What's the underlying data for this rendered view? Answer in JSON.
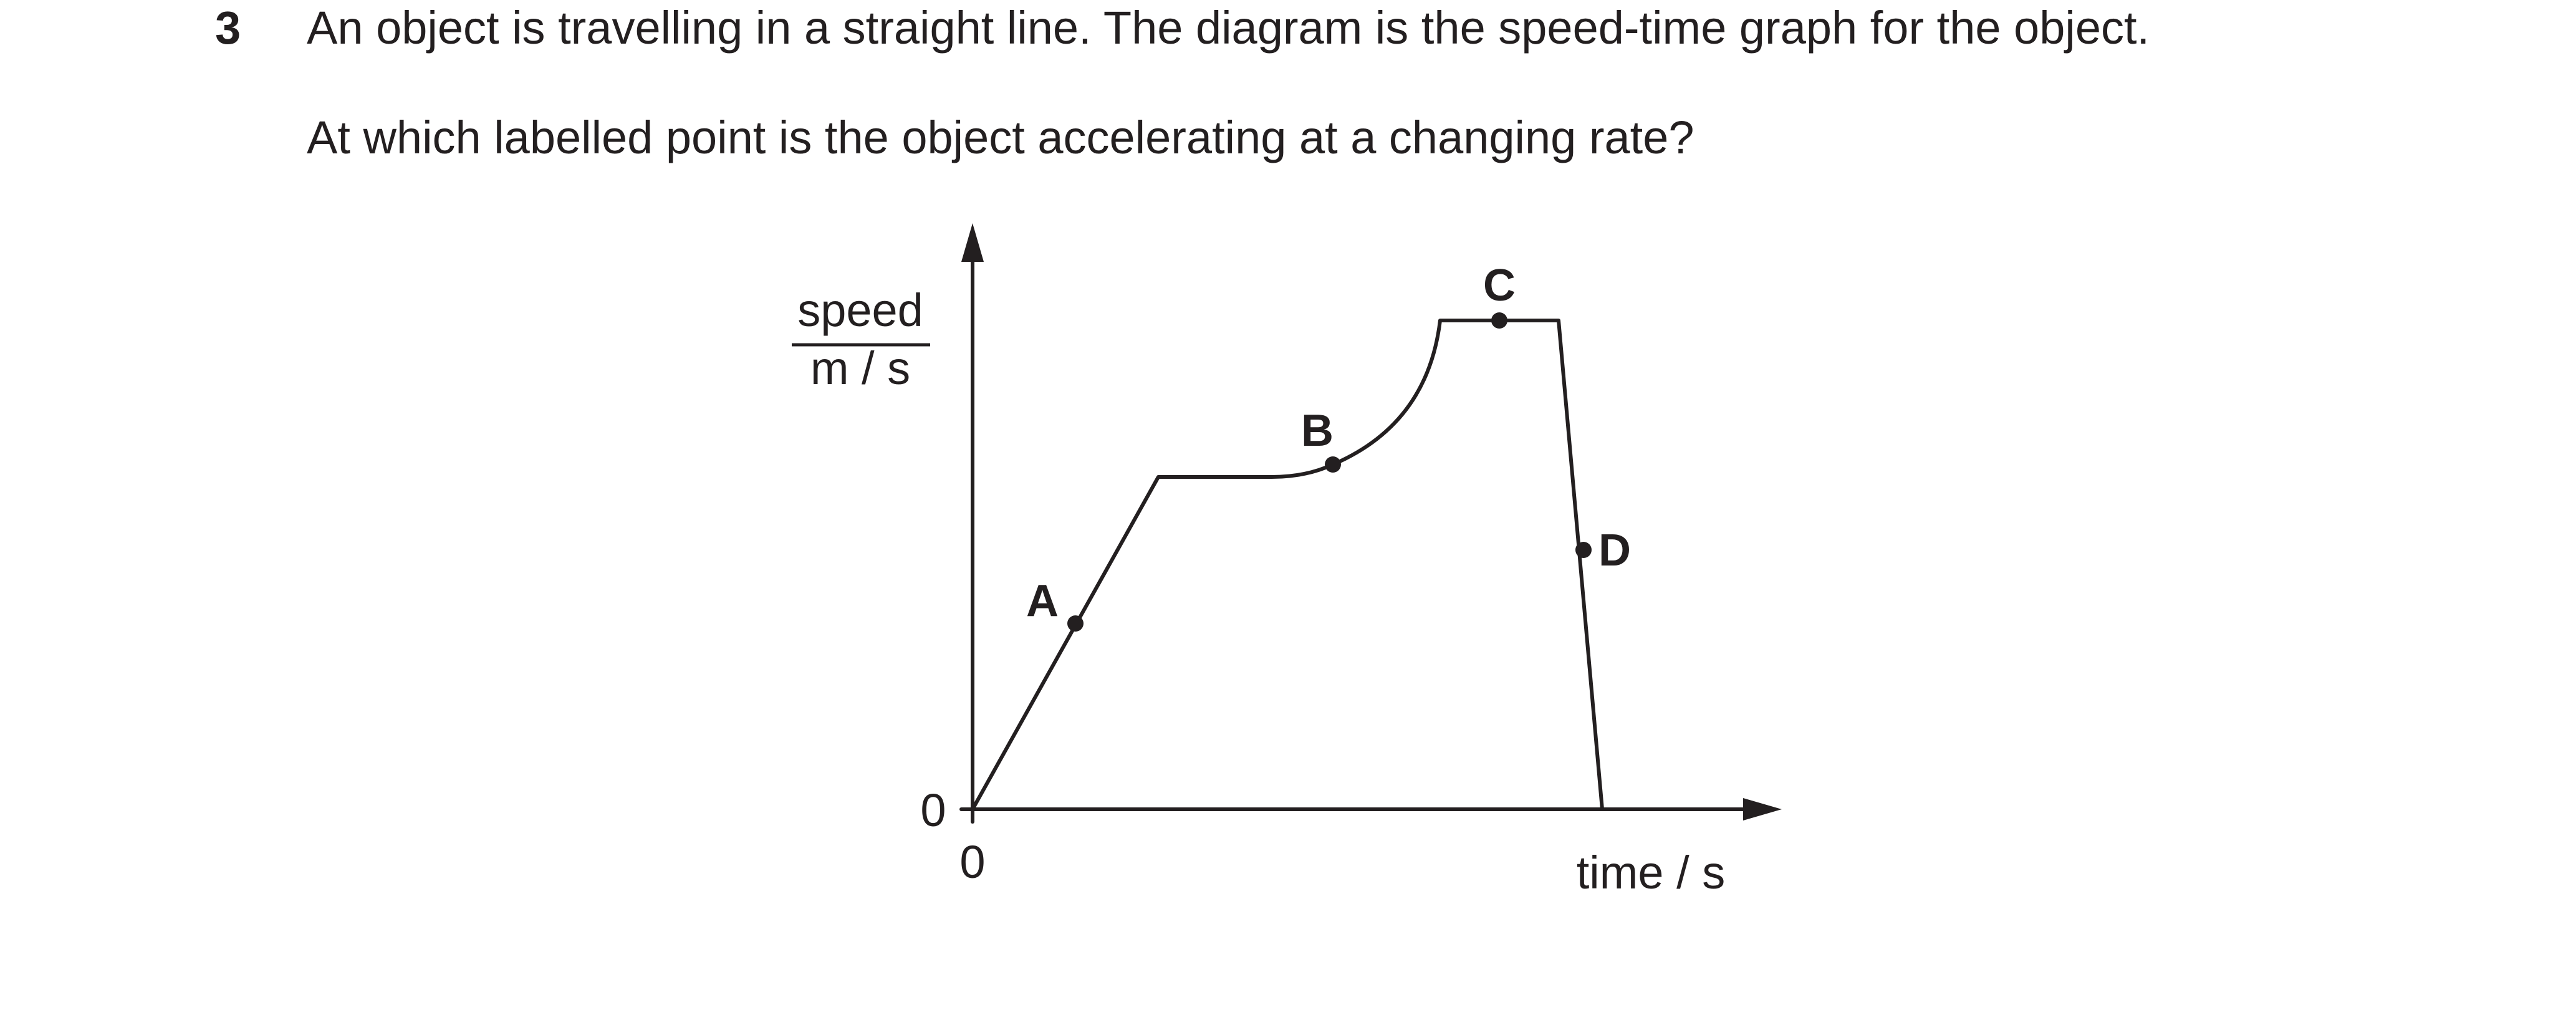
{
  "question": {
    "number": "3",
    "stem": "An object is travelling in a straight line. The diagram is the speed-time graph for the object.",
    "prompt": "At which labelled point is the object accelerating at a changing rate?"
  },
  "graph": {
    "y_axis_label_numerator": "speed",
    "y_axis_label_denominator": "m / s",
    "x_axis_label": "time / s",
    "y_origin_label": "0",
    "x_origin_label": "0",
    "points": [
      {
        "label": "A"
      },
      {
        "label": "B"
      },
      {
        "label": "C"
      },
      {
        "label": "D"
      }
    ],
    "line_color": "#231f20"
  }
}
